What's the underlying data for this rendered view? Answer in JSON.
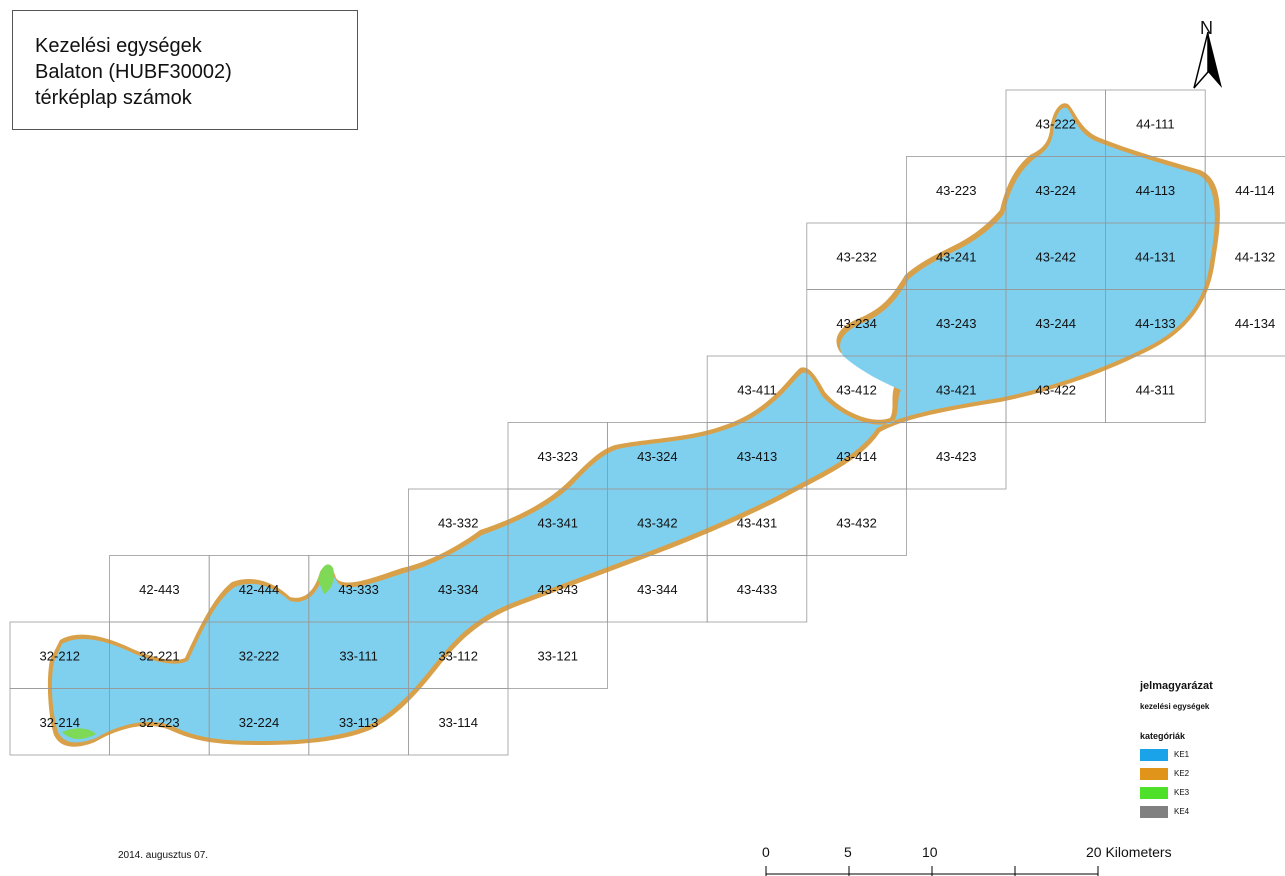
{
  "title": {
    "line1": "Kezelési egységek",
    "line2": "Balaton (HUBF30002)",
    "line3": "térképlap számok"
  },
  "north": "N",
  "colors": {
    "lake": "#7fd0ef",
    "shore": "#d9a04a",
    "grid": "#999999"
  },
  "cells": [
    {
      "label": "43-222",
      "row": 0,
      "col": 10
    },
    {
      "label": "44-111",
      "row": 0,
      "col": 11
    },
    {
      "label": "43-223",
      "row": 1,
      "col": 9
    },
    {
      "label": "43-224",
      "row": 1,
      "col": 10
    },
    {
      "label": "44-113",
      "row": 1,
      "col": 11
    },
    {
      "label": "44-114",
      "row": 1,
      "col": 12
    },
    {
      "label": "43-232",
      "row": 2,
      "col": 8
    },
    {
      "label": "43-241",
      "row": 2,
      "col": 9
    },
    {
      "label": "43-242",
      "row": 2,
      "col": 10
    },
    {
      "label": "44-131",
      "row": 2,
      "col": 11
    },
    {
      "label": "44-132",
      "row": 2,
      "col": 12
    },
    {
      "label": "43-234",
      "row": 3,
      "col": 8
    },
    {
      "label": "43-243",
      "row": 3,
      "col": 9
    },
    {
      "label": "43-244",
      "row": 3,
      "col": 10
    },
    {
      "label": "44-133",
      "row": 3,
      "col": 11
    },
    {
      "label": "44-134",
      "row": 3,
      "col": 12
    },
    {
      "label": "43-411",
      "row": 4,
      "col": 7
    },
    {
      "label": "43-412",
      "row": 4,
      "col": 8
    },
    {
      "label": "43-421",
      "row": 4,
      "col": 9
    },
    {
      "label": "43-422",
      "row": 4,
      "col": 10
    },
    {
      "label": "44-311",
      "row": 4,
      "col": 11
    },
    {
      "label": "43-323",
      "row": 5,
      "col": 5
    },
    {
      "label": "43-324",
      "row": 5,
      "col": 6
    },
    {
      "label": "43-413",
      "row": 5,
      "col": 7
    },
    {
      "label": "43-414",
      "row": 5,
      "col": 8
    },
    {
      "label": "43-423",
      "row": 5,
      "col": 9
    },
    {
      "label": "43-332",
      "row": 6,
      "col": 4
    },
    {
      "label": "43-341",
      "row": 6,
      "col": 5
    },
    {
      "label": "43-342",
      "row": 6,
      "col": 6
    },
    {
      "label": "43-431",
      "row": 6,
      "col": 7
    },
    {
      "label": "43-432",
      "row": 6,
      "col": 8
    },
    {
      "label": "42-443",
      "row": 7,
      "col": 1
    },
    {
      "label": "42-444",
      "row": 7,
      "col": 2
    },
    {
      "label": "43-333",
      "row": 7,
      "col": 3
    },
    {
      "label": "43-334",
      "row": 7,
      "col": 4
    },
    {
      "label": "43-343",
      "row": 7,
      "col": 5
    },
    {
      "label": "43-344",
      "row": 7,
      "col": 6
    },
    {
      "label": "43-433",
      "row": 7,
      "col": 7
    },
    {
      "label": "32-212",
      "row": 8,
      "col": 0
    },
    {
      "label": "32-221",
      "row": 8,
      "col": 1
    },
    {
      "label": "32-222",
      "row": 8,
      "col": 2
    },
    {
      "label": "33-111",
      "row": 8,
      "col": 3
    },
    {
      "label": "33-112",
      "row": 8,
      "col": 4
    },
    {
      "label": "33-121",
      "row": 8,
      "col": 5
    },
    {
      "label": "32-214",
      "row": 9,
      "col": 0
    },
    {
      "label": "32-223",
      "row": 9,
      "col": 1
    },
    {
      "label": "32-224",
      "row": 9,
      "col": 2
    },
    {
      "label": "33-113",
      "row": 9,
      "col": 3
    },
    {
      "label": "33-114",
      "row": 9,
      "col": 4
    }
  ],
  "legend": {
    "title": "jelmagyarázat",
    "subtitle": "kezelési egységek",
    "categories_title": "kategóriák",
    "items": [
      {
        "label": "KE1",
        "color": "#1aa3e8"
      },
      {
        "label": "KE2",
        "color": "#e0941a"
      },
      {
        "label": "KE3",
        "color": "#4fe02a"
      },
      {
        "label": "KE4",
        "color": "#808080"
      }
    ]
  },
  "date": "2014. augusztus 07.",
  "scale": {
    "labels": [
      {
        "text": "0",
        "value": 0
      },
      {
        "text": "5",
        "value": 5
      },
      {
        "text": "10",
        "value": 10
      },
      {
        "text": "20 Kilometers",
        "value": 20
      }
    ]
  }
}
